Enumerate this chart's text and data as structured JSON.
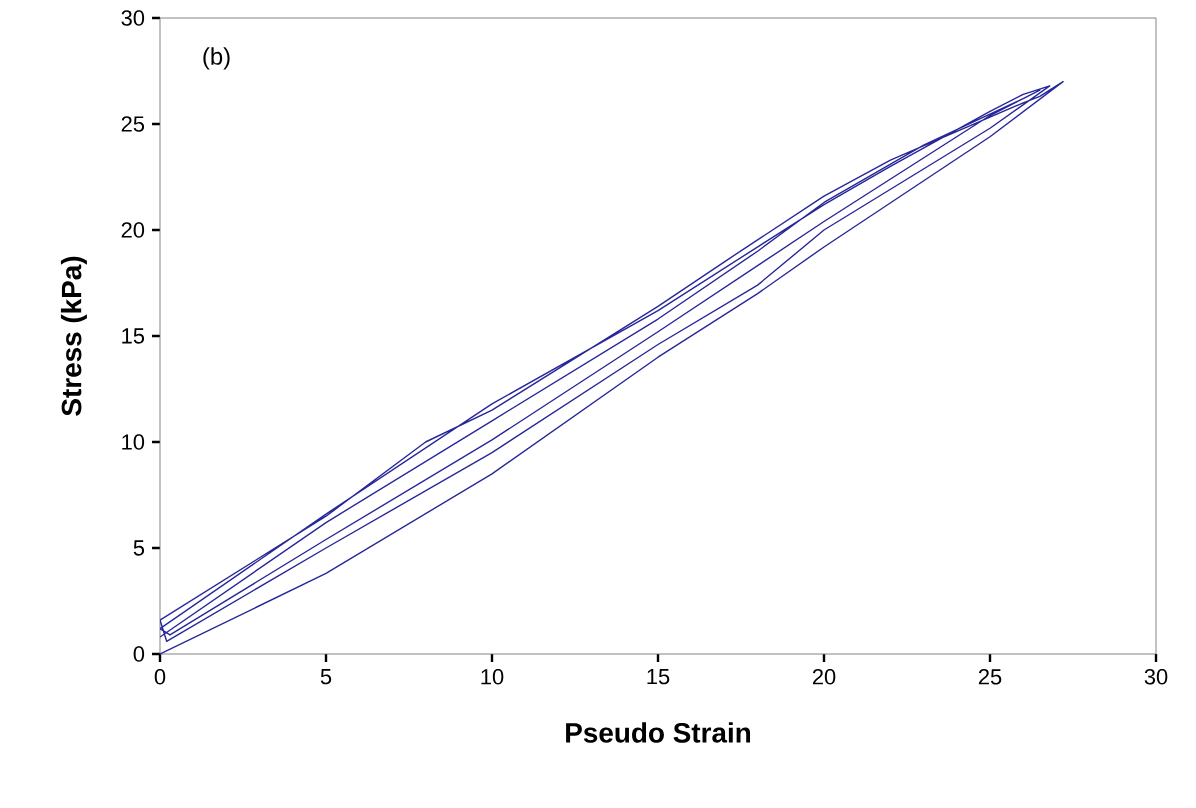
{
  "chart_data": {
    "type": "line",
    "xlabel": "Pseudo Strain",
    "ylabel": "Stress (kPa)",
    "annotations": [
      "(b)"
    ],
    "xlim": [
      0,
      30
    ],
    "ylim": [
      0,
      30
    ],
    "xticks": [
      0,
      5,
      10,
      15,
      20,
      25,
      30
    ],
    "yticks": [
      0,
      5,
      10,
      15,
      20,
      25,
      30
    ],
    "series": [
      {
        "color": "#27279a",
        "x": [
          0,
          5,
          10,
          15,
          18,
          20,
          25,
          27.2,
          26.5,
          26,
          22,
          20,
          17,
          15,
          10,
          8,
          5,
          0,
          0.2,
          5,
          10,
          15,
          18,
          20,
          25,
          26.8,
          26,
          25,
          22,
          20,
          15,
          10,
          5,
          0,
          0.3,
          5,
          10,
          15,
          20,
          25,
          26.5,
          26,
          23,
          20,
          18,
          15,
          10,
          5,
          0
        ],
        "values": [
          0,
          3.8,
          8.5,
          14,
          17,
          19.2,
          24.4,
          27,
          26.3,
          26,
          23.3,
          21.6,
          18.5,
          16.4,
          11.5,
          10,
          6.5,
          1.6,
          0.6,
          5,
          9.5,
          14.6,
          17.4,
          20,
          24.8,
          26.8,
          26.4,
          25.6,
          23,
          21.2,
          16.2,
          11.8,
          6.6,
          1.2,
          0.9,
          5.4,
          10.1,
          15.2,
          20.4,
          25.4,
          26.6,
          26.2,
          24,
          21.3,
          19,
          15.8,
          11,
          6.2,
          0.8
        ]
      }
    ]
  }
}
